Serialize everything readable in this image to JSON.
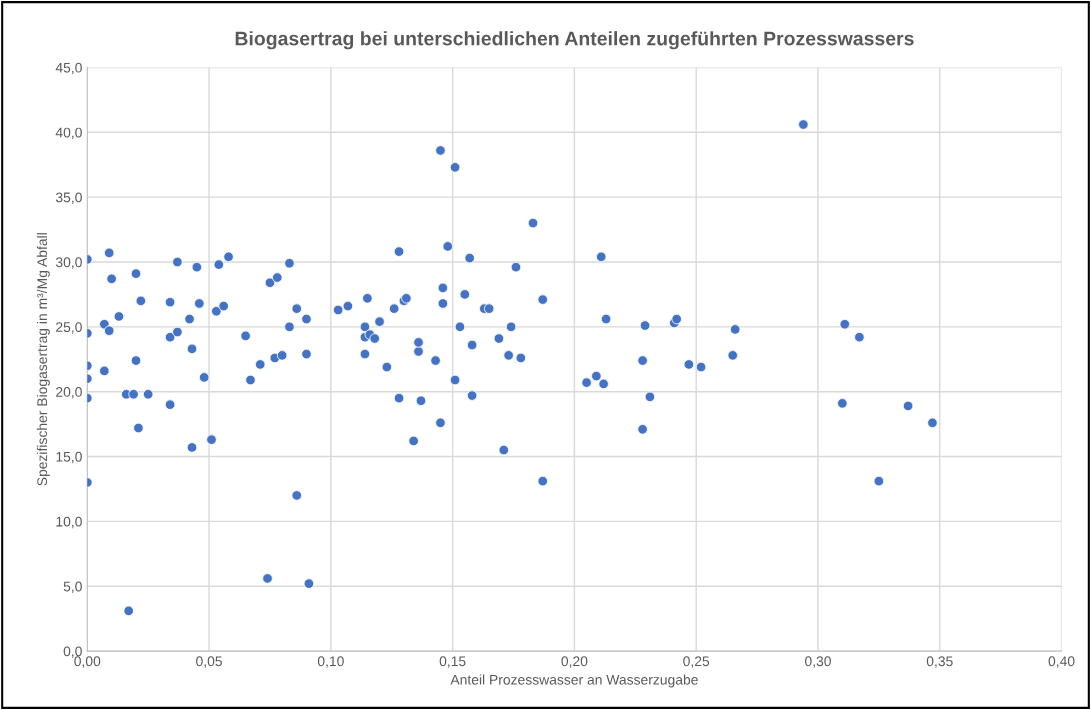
{
  "chart_data": {
    "type": "scatter",
    "title": "Biogasertrag bei unterschiedlichen Anteilen zugeführten Prozesswassers",
    "xlabel": "Anteil Prozesswasser an Wasserzugabe",
    "ylabel": "Spezifischer Biogasertrag in m³/Mg Abfall",
    "x": [
      0,
      0,
      0,
      0,
      0,
      0,
      0.007,
      0.007,
      0.009,
      0.009,
      0.01,
      0.013,
      0.016,
      0.017,
      0.019,
      0.02,
      0.02,
      0.021,
      0.022,
      0.025,
      0.034,
      0.034,
      0.034,
      0.037,
      0.037,
      0.042,
      0.043,
      0.043,
      0.045,
      0.046,
      0.048,
      0.051,
      0.053,
      0.054,
      0.056,
      0.058,
      0.065,
      0.067,
      0.071,
      0.074,
      0.075,
      0.077,
      0.078,
      0.08,
      0.083,
      0.083,
      0.086,
      0.086,
      0.09,
      0.09,
      0.091,
      0.103,
      0.107,
      0.114,
      0.114,
      0.114,
      0.115,
      0.116,
      0.118,
      0.12,
      0.123,
      0.126,
      0.128,
      0.128,
      0.13,
      0.131,
      0.134,
      0.136,
      0.136,
      0.137,
      0.143,
      0.145,
      0.145,
      0.146,
      0.146,
      0.148,
      0.151,
      0.151,
      0.153,
      0.155,
      0.157,
      0.158,
      0.158,
      0.163,
      0.165,
      0.169,
      0.171,
      0.173,
      0.174,
      0.176,
      0.178,
      0.183,
      0.187,
      0.187,
      0.205,
      0.209,
      0.211,
      0.212,
      0.213,
      0.228,
      0.228,
      0.229,
      0.231,
      0.241,
      0.242,
      0.247,
      0.252,
      0.265,
      0.266,
      0.294,
      0.31,
      0.311,
      0.317,
      0.325,
      0.337,
      0.347
    ],
    "series": [
      {
        "color": "#4472c4",
        "values": [
          30.2,
          24.5,
          22.0,
          21.0,
          19.5,
          13.0,
          25.2,
          21.6,
          30.7,
          24.7,
          28.7,
          25.8,
          19.8,
          3.1,
          19.8,
          29.1,
          22.4,
          17.2,
          27.0,
          19.8,
          24.2,
          26.9,
          19.0,
          24.6,
          30.0,
          25.6,
          23.3,
          15.7,
          29.6,
          26.8,
          21.1,
          16.3,
          26.2,
          29.8,
          26.6,
          30.4,
          24.3,
          20.9,
          22.1,
          5.6,
          28.4,
          22.6,
          28.8,
          22.8,
          29.9,
          25.0,
          26.4,
          12.0,
          22.9,
          25.6,
          5.2,
          26.3,
          26.6,
          25.0,
          24.2,
          22.9,
          27.2,
          24.4,
          24.1,
          25.4,
          21.9,
          26.4,
          30.8,
          19.5,
          27.0,
          27.2,
          16.2,
          23.1,
          23.8,
          19.3,
          22.4,
          38.6,
          17.6,
          28.0,
          26.8,
          31.2,
          37.3,
          20.9,
          25.0,
          27.5,
          30.3,
          19.7,
          23.6,
          26.4,
          26.4,
          24.1,
          15.5,
          22.8,
          25.0,
          29.6,
          22.6,
          33.0,
          27.1,
          13.1,
          20.7,
          21.2,
          30.4,
          20.6,
          25.6,
          22.4,
          17.1,
          25.1,
          19.6,
          25.3,
          25.6,
          22.1,
          21.9,
          22.8,
          24.8,
          40.6,
          19.1,
          25.2,
          24.2,
          13.1,
          18.9,
          17.6
        ]
      }
    ],
    "xlim": [
      0,
      0.4
    ],
    "xticks": [
      {
        "value": 0,
        "label": "0,00"
      },
      {
        "value": 0.05,
        "label": "0,05"
      },
      {
        "value": 0.1,
        "label": "0,10"
      },
      {
        "value": 0.15,
        "label": "0,15"
      },
      {
        "value": 0.2,
        "label": "0,20"
      },
      {
        "value": 0.25,
        "label": "0,25"
      },
      {
        "value": 0.3,
        "label": "0,30"
      },
      {
        "value": 0.35,
        "label": "0,35"
      },
      {
        "value": 0.4,
        "label": "0,40"
      }
    ],
    "ylim": [
      0,
      45
    ],
    "yticks": [
      {
        "value": 0,
        "label": "0,0"
      },
      {
        "value": 5,
        "label": "5,0"
      },
      {
        "value": 10,
        "label": "10,0"
      },
      {
        "value": 15,
        "label": "15,0"
      },
      {
        "value": 20,
        "label": "20,0"
      },
      {
        "value": 25,
        "label": "25,0"
      },
      {
        "value": 30,
        "label": "30,0"
      },
      {
        "value": 35,
        "label": "35,0"
      },
      {
        "value": 40,
        "label": "40,0"
      },
      {
        "value": 45,
        "label": "45,0"
      }
    ],
    "grid": true,
    "marker": "circle"
  }
}
